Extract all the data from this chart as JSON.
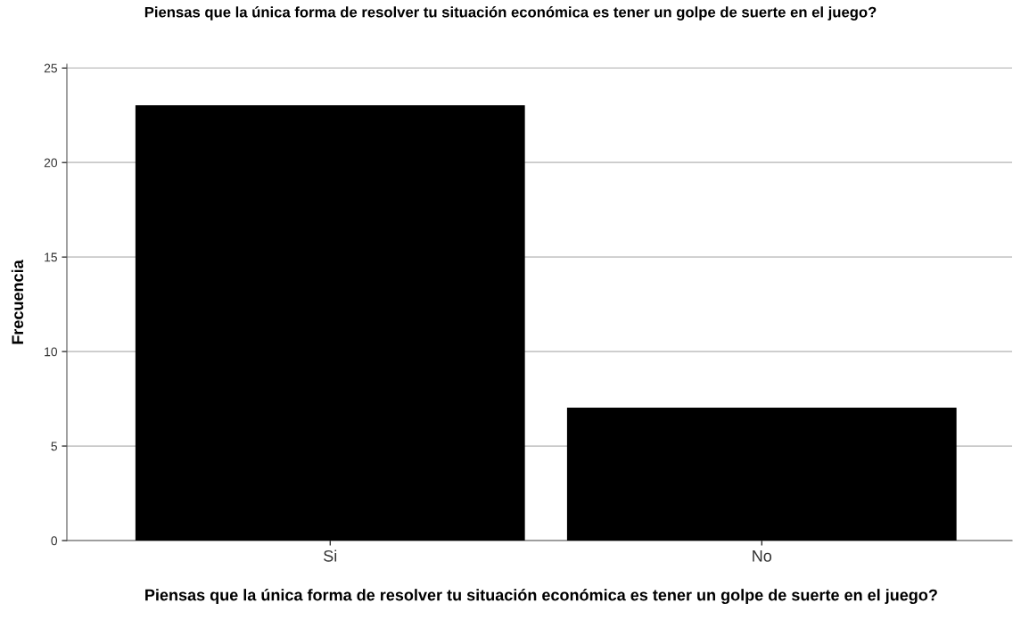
{
  "chart_data": {
    "type": "bar",
    "title": "Piensas que la única forma de resolver tu situación económica es tener un golpe de suerte en el juego?",
    "xlabel": "Piensas que la única forma de resolver tu situación económica es tener un golpe de suerte en el juego?",
    "ylabel": "Frecuencia",
    "categories": [
      "Si",
      "No"
    ],
    "values": [
      23,
      7
    ],
    "color": "#000000",
    "ylim": [
      0,
      25.2
    ],
    "yticks": [
      0,
      5,
      10,
      15,
      20,
      25
    ],
    "grid": "y"
  }
}
